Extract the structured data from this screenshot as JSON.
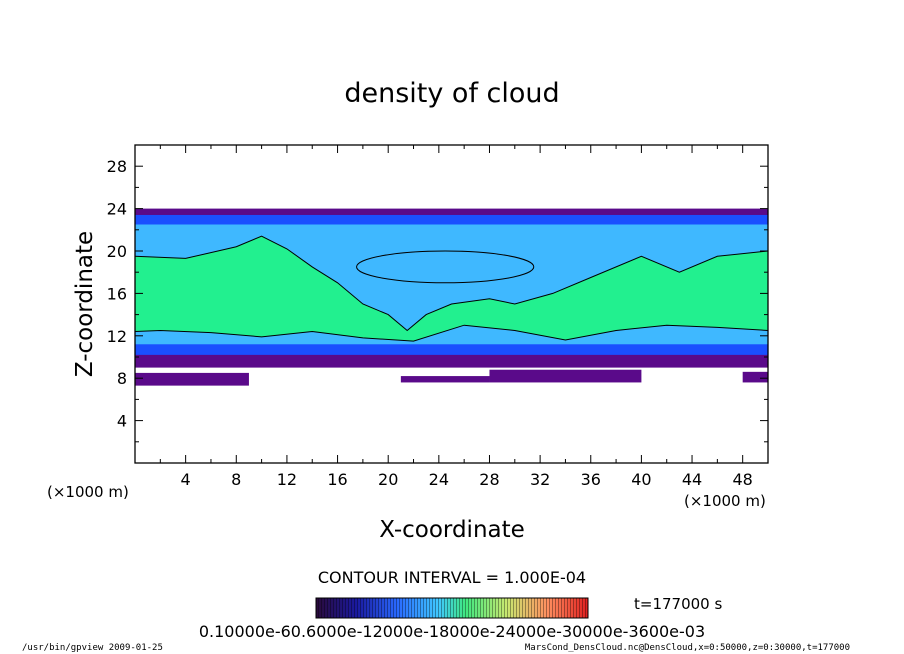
{
  "chart_data": {
    "type": "heatmap",
    "title": "density of cloud",
    "xlabel": "X-coordinate",
    "ylabel": "Z-coordinate",
    "x_unit_label": "(×1000 m)",
    "y_unit_label": "(×1000 m)",
    "xlim": [
      0,
      50
    ],
    "ylim": [
      0,
      30
    ],
    "x_ticks": [
      "4",
      "8",
      "12",
      "16",
      "20",
      "24",
      "28",
      "32",
      "36",
      "40",
      "44",
      "48"
    ],
    "y_ticks": [
      "4",
      "8",
      "12",
      "16",
      "20",
      "24",
      "28"
    ],
    "contour_interval": "CONTOUR INTERVAL = 1.000E-04",
    "time_label": "t=177000 s",
    "colorbar_labels": "0.10000e-60.6000e-12000e-18000e-24000e-30000e-3600e-03",
    "colorbar_range": [
      0.0,
      0.0003
    ],
    "cloud_layer": {
      "top_z": 24,
      "bottom_z": 9,
      "core_z": [
        12,
        20
      ],
      "contour_level": 0.0001
    },
    "colors": {
      "low": "#5a0a8a",
      "mid_low": "#1a4fff",
      "mid": "#3fb8ff",
      "high": "#22f08f"
    }
  },
  "footer": {
    "left": "/usr/bin/gpview   2009-01-25",
    "right": "MarsCond_DensCloud.nc@DensCloud,x=0:50000,z=0:30000,t=177000"
  }
}
